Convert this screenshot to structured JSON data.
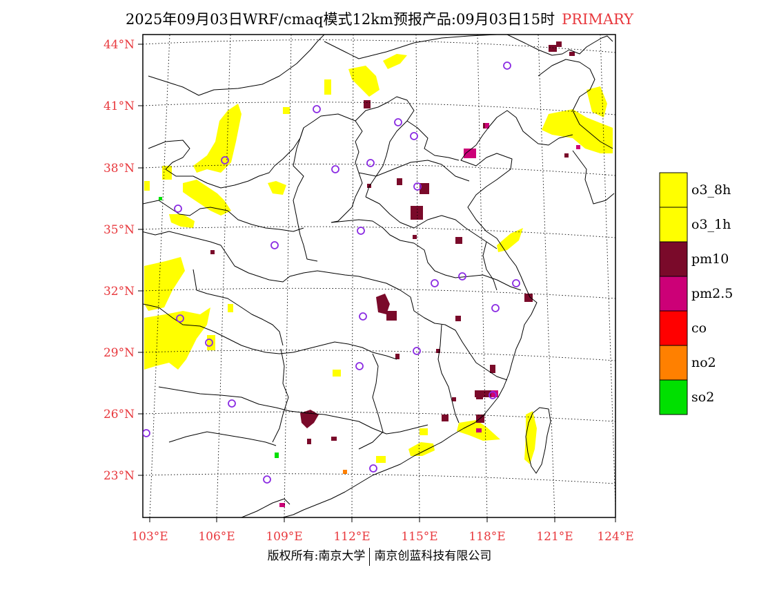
{
  "header": {
    "title": "2025年09月03日WRF/cmaq模式12km预报产品:09月03日15时",
    "tag": "PRIMARY"
  },
  "map": {
    "lat_labels": [
      "44°N",
      "41°N",
      "38°N",
      "35°N",
      "32°N",
      "29°N",
      "26°N",
      "23°N"
    ],
    "lon_labels": [
      "103°E",
      "106°E",
      "109°E",
      "112°E",
      "115°E",
      "118°E",
      "121°E",
      "124°E"
    ],
    "label_color": "#e8383d",
    "station_color": "#8a2be2"
  },
  "legend": {
    "items": [
      {
        "label": "o3_8h",
        "color": "#ffff00"
      },
      {
        "label": "o3_1h",
        "color": "#ffff00"
      },
      {
        "label": "pm10",
        "color": "#7a0a2a"
      },
      {
        "label": "pm2.5",
        "color": "#cc0077"
      },
      {
        "label": "co",
        "color": "#ff0000"
      },
      {
        "label": "no2",
        "color": "#ff8000"
      },
      {
        "label": "so2",
        "color": "#00e000"
      }
    ]
  },
  "footer": {
    "left": "版权所有:南京大学",
    "right": "南京创蓝科技有限公司"
  }
}
